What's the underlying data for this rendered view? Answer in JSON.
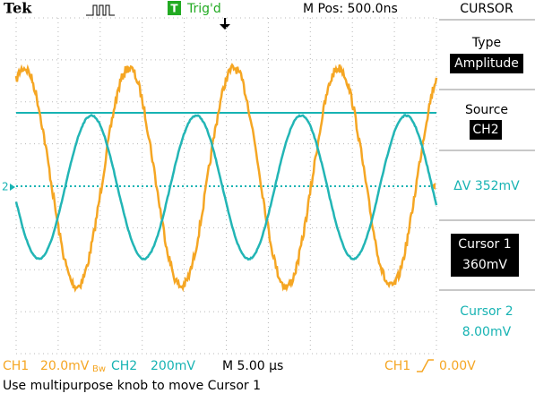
{
  "header": {
    "brand": "Tek",
    "trigger_badge": "T",
    "trigger_status": "Trig'd",
    "position": "M Pos: 500.0ns",
    "menu_title": "CURSOR"
  },
  "menu": {
    "type_label": "Type",
    "type_value": "Amplitude",
    "source_label": "Source",
    "source_value": "CH2",
    "delta": "ΔV 352mV",
    "cursor1_label": "Cursor 1",
    "cursor1_value": "360mV",
    "cursor2_label": "Cursor 2",
    "cursor2_value": "8.00mV"
  },
  "screen": {
    "channel_marker": "2"
  },
  "status": {
    "ch1": "CH1",
    "ch1_scale": "20.0mV",
    "ch1_bw": "Bw",
    "ch2": "CH2",
    "ch2_scale": "200mV",
    "timebase": "M 5.00 µs",
    "trigger_source": "CH1",
    "trigger_level": "0.00V"
  },
  "message": "Use multipurpose knob to move Cursor 1"
}
